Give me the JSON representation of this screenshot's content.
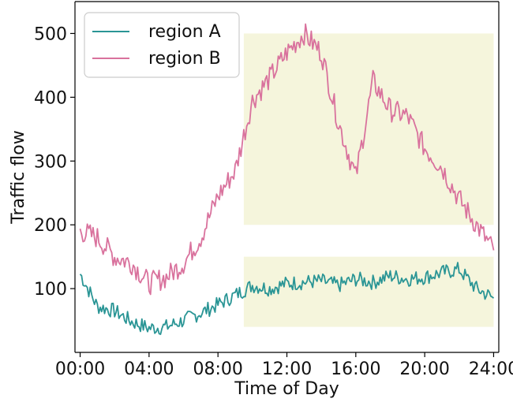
{
  "chart_data": {
    "type": "line",
    "xlabel": "Time of Day",
    "ylabel": "Traffic flow",
    "x_ticks": [
      "00:00",
      "04:00",
      "08:00",
      "12:00",
      "16:00",
      "20:00",
      "24:00"
    ],
    "y_ticks": [
      100,
      200,
      300,
      400,
      500
    ],
    "xlim_hours": [
      -0.3,
      24.3
    ],
    "ylim": [
      0,
      550
    ],
    "grid": false,
    "legend_position": "top-left",
    "highlight_regions": [
      {
        "x_start_hours": 9.5,
        "x_end_hours": 24,
        "y_range": [
          200,
          500
        ],
        "color": "#f5f5dc"
      },
      {
        "x_start_hours": 9.5,
        "x_end_hours": 24,
        "y_range": [
          40,
          150
        ],
        "color": "#f5f5dc"
      }
    ],
    "series": [
      {
        "name": "region A",
        "color": "#2a9595",
        "x_hours": [
          0,
          1,
          2,
          3,
          4,
          5,
          6,
          7,
          8,
          9,
          10,
          11,
          12,
          13,
          14,
          15,
          16,
          17,
          18,
          19,
          20,
          21,
          22,
          23,
          24
        ],
        "values": [
          123,
          72,
          65,
          48,
          38,
          40,
          50,
          62,
          75,
          90,
          105,
          100,
          108,
          110,
          112,
          105,
          115,
          110,
          120,
          115,
          118,
          125,
          130,
          100,
          85
        ]
      },
      {
        "name": "region B",
        "color": "#d9729d",
        "x_hours": [
          0,
          1,
          2,
          3,
          4,
          5,
          6,
          7,
          8,
          9,
          10,
          11,
          12,
          13,
          14,
          15,
          16,
          17,
          18,
          19,
          20,
          21,
          22,
          23,
          24
        ],
        "values": [
          190,
          180,
          150,
          140,
          108,
          118,
          140,
          180,
          245,
          285,
          395,
          430,
          470,
          500,
          470,
          360,
          275,
          425,
          380,
          370,
          320,
          290,
          240,
          200,
          160
        ]
      }
    ]
  }
}
